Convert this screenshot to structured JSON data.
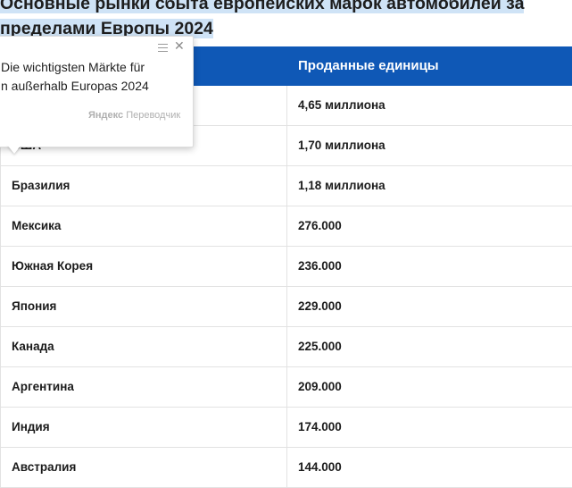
{
  "heading": {
    "line1": "Основные рынки сбыта европейских марок автомобилей за",
    "line2": "пределами Европы 2024"
  },
  "table": {
    "header": {
      "col1": "",
      "col2": "Проданные единицы"
    },
    "rows": [
      {
        "country": "",
        "units": "4,65 миллиона"
      },
      {
        "country": "США",
        "units": "1,70 миллиона"
      },
      {
        "country": "Бразилия",
        "units": "1,18 миллиона"
      },
      {
        "country": "Мексика",
        "units": "276.000"
      },
      {
        "country": "Южная Корея",
        "units": "236.000"
      },
      {
        "country": "Япония",
        "units": "229.000"
      },
      {
        "country": "Канада",
        "units": "225.000"
      },
      {
        "country": "Аргентина",
        "units": "209.000"
      },
      {
        "country": "Индия",
        "units": "174.000"
      },
      {
        "country": "Австралия",
        "units": "144.000"
      }
    ]
  },
  "translator_popup": {
    "line1": "Die wichtigsten Märkte für",
    "line2": "n außerhalb Europas 2024",
    "brand_bold": "Яндекс",
    "brand_rest": "Переводчик",
    "menu_icon": "hamburger-icon",
    "close_icon": "close-icon"
  },
  "colors": {
    "header_bg": "#0f58b6",
    "selection": "#cfe3f6"
  }
}
